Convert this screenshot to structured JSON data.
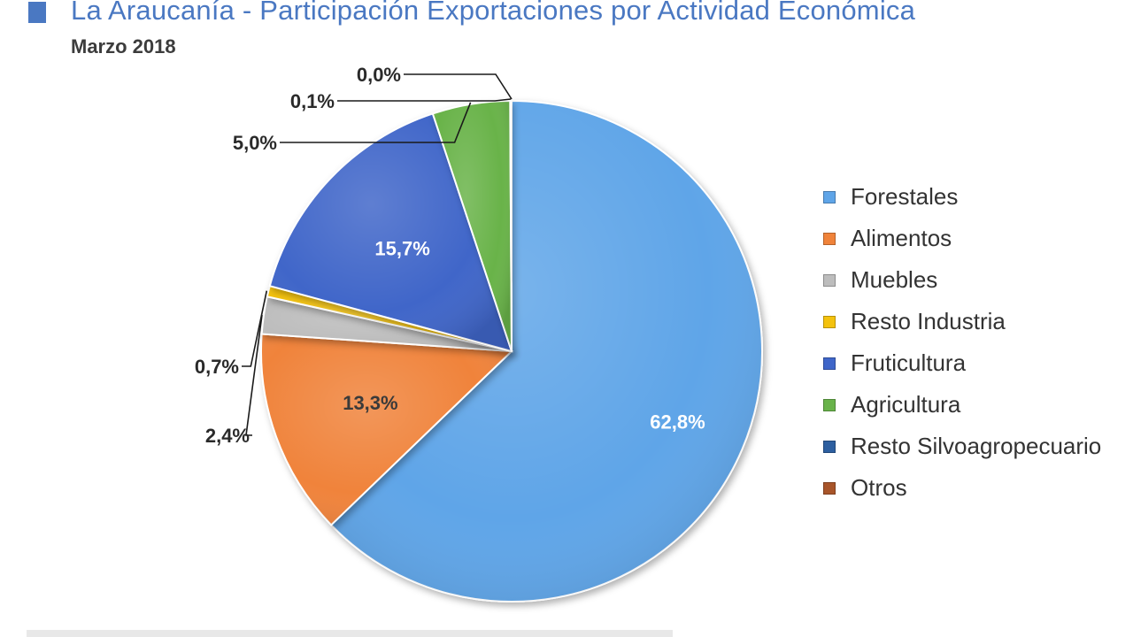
{
  "header": {
    "title": "La Araucanía - Participación Exportaciones por Actividad Económica",
    "subtitle": "Marzo 2018",
    "marker_color": "#4a78c2"
  },
  "chart_data": {
    "type": "pie",
    "title": "La Araucanía - Participación Exportaciones por Actividad Económica",
    "subtitle": "Marzo 2018",
    "legend_position": "right",
    "start_direction": "clockwise from top",
    "slices": [
      {
        "name": "Forestales",
        "value": 62.8,
        "label": "62,8%",
        "color": "#5fa5e8",
        "label_placement": "inside",
        "label_color": "#ffffff"
      },
      {
        "name": "Alimentos",
        "value": 13.3,
        "label": "13,3%",
        "color": "#f0833a",
        "label_placement": "inside",
        "label_color": "#3a3a3a"
      },
      {
        "name": "Muebles",
        "value": 2.4,
        "label": "2,4%",
        "color": "#bdbdbd",
        "label_placement": "outside",
        "label_color": "#2a2a2a"
      },
      {
        "name": "Resto Industria",
        "value": 0.7,
        "label": "0,7%",
        "color": "#f4c20d",
        "label_placement": "outside",
        "label_color": "#2a2a2a"
      },
      {
        "name": "Fruticultura",
        "value": 15.7,
        "label": "15,7%",
        "color": "#3f66c9",
        "label_placement": "inside",
        "label_color": "#ffffff"
      },
      {
        "name": "Agricultura",
        "value": 5.0,
        "label": "5,0%",
        "color": "#69b34a",
        "label_placement": "outside",
        "label_color": "#2a2a2a"
      },
      {
        "name": "Resto Silvoagropecuario",
        "value": 0.1,
        "label": "0,1%",
        "color": "#2d5fa0",
        "label_placement": "outside",
        "label_color": "#2a2a2a"
      },
      {
        "name": "Otros",
        "value": 0.0,
        "label": "0,0%",
        "color": "#a8552a",
        "label_placement": "outside",
        "label_color": "#2a2a2a"
      }
    ]
  }
}
